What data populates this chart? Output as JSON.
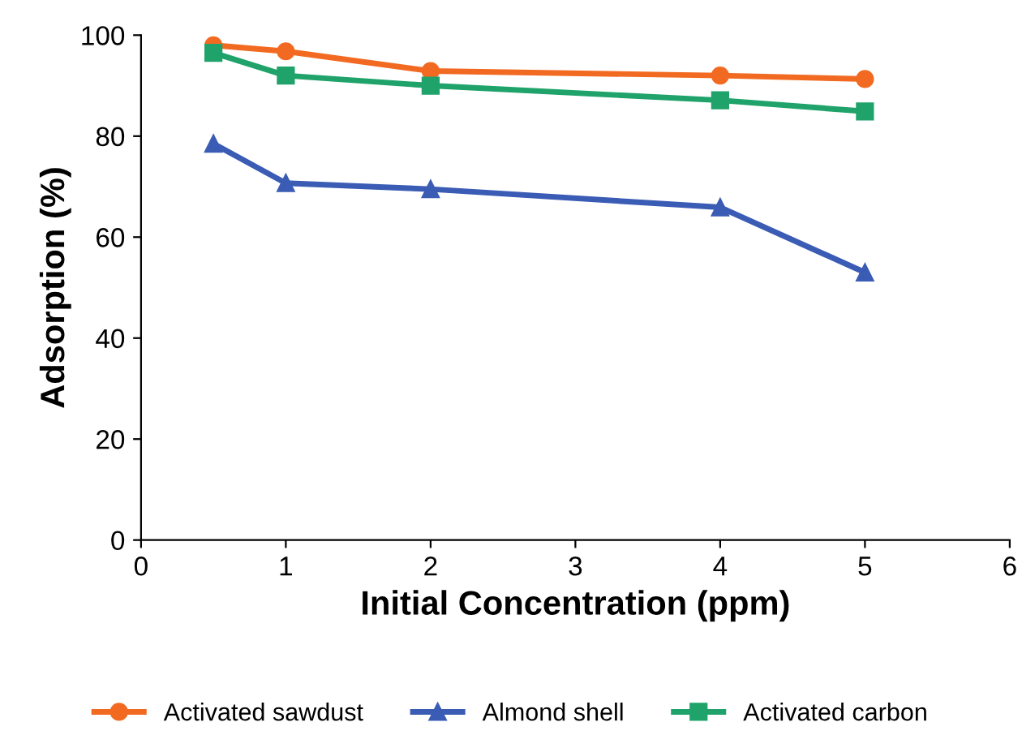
{
  "chart_data": {
    "type": "line",
    "xlabel": "Initial Concentration (ppm)",
    "ylabel": "Adsorption (%)",
    "x": [
      0.5,
      1,
      2,
      4,
      5
    ],
    "series": [
      {
        "name": "Activated sawdust",
        "color": "#f26a21",
        "marker": "circle",
        "values": [
          98,
          96.8,
          92.9,
          92,
          91.3
        ]
      },
      {
        "name": "Almond shell",
        "color": "#3b5cb5",
        "marker": "triangle",
        "values": [
          78.5,
          70.7,
          69.5,
          65.9,
          53
        ]
      },
      {
        "name": "Activated carbon",
        "color": "#1fa36a",
        "marker": "square",
        "values": [
          96.5,
          92,
          90,
          87.1,
          84.9
        ]
      }
    ],
    "xlim": [
      0,
      6
    ],
    "xticks": [
      0,
      1,
      2,
      3,
      4,
      5,
      6
    ],
    "ylim": [
      0,
      100
    ],
    "yticks": [
      0,
      20,
      40,
      60,
      80,
      100
    ],
    "grid": false,
    "legend": "bottom",
    "line_style": "solid"
  }
}
